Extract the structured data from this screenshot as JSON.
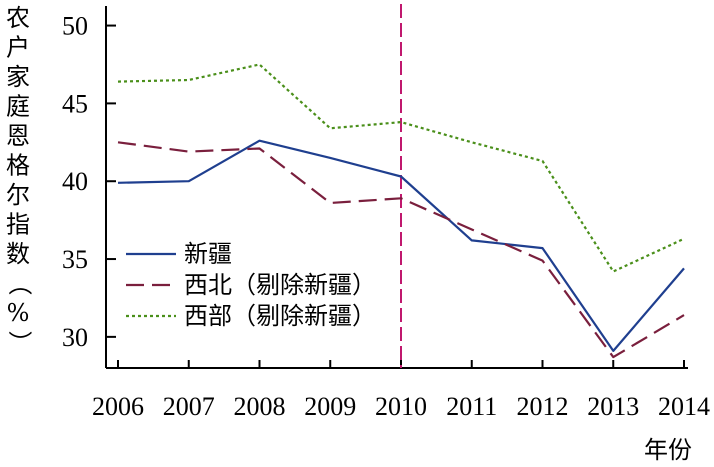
{
  "chart_data": {
    "type": "line",
    "categories": [
      "2006",
      "2007",
      "2008",
      "2009",
      "2010",
      "2011",
      "2012",
      "2013",
      "2014"
    ],
    "series": [
      {
        "name": "新疆",
        "values": [
          39.9,
          40.0,
          42.6,
          41.5,
          40.3,
          36.2,
          35.7,
          29.1,
          34.4
        ],
        "color": "#1f3f8f",
        "dash": ""
      },
      {
        "name": "西北（剔除新疆）",
        "values": [
          42.5,
          41.9,
          42.1,
          38.6,
          38.9,
          36.9,
          34.9,
          28.7,
          31.4
        ],
        "color": "#7a1f3d",
        "dash": "18,8"
      },
      {
        "name": "西部（剔除新疆）",
        "values": [
          46.4,
          46.5,
          47.5,
          43.4,
          43.8,
          42.5,
          41.3,
          34.2,
          36.3
        ],
        "color": "#4a8f1a",
        "dash": "3,3"
      }
    ],
    "yticks": [
      "30",
      "35",
      "40",
      "45",
      "50"
    ],
    "ylim": [
      28,
      51
    ],
    "ylabel": "农户家庭恩格尔指数（%）",
    "xlabel": "年份",
    "vline_at": "2010",
    "vline_color": "#c0186e",
    "legend_position": "lower-left",
    "grid": false
  }
}
